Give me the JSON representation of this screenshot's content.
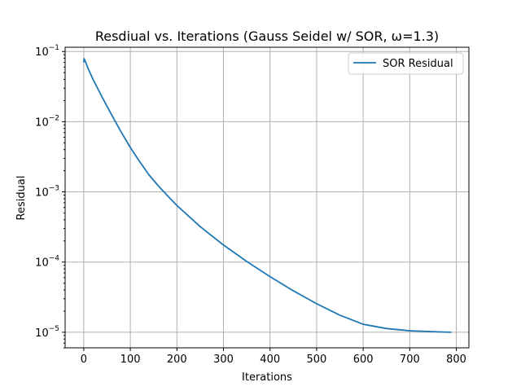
{
  "chart_data": {
    "type": "line",
    "title": "Resdiual vs. Iterations (Gauss Seidel w/ SOR, ω=1.3)",
    "xlabel": "Iterations",
    "ylabel": "Residual",
    "yscale": "log",
    "xlim": [
      -40,
      827
    ],
    "ylim": [
      6e-06,
      0.115
    ],
    "grid": true,
    "legend_position": "top-right",
    "x_ticks": [
      0,
      100,
      200,
      300,
      400,
      500,
      600,
      700,
      800
    ],
    "y_ticks": [
      {
        "value": 1e-05,
        "base": "10",
        "exp": "−5"
      },
      {
        "value": 0.0001,
        "base": "10",
        "exp": "−4"
      },
      {
        "value": 0.001,
        "base": "10",
        "exp": "−3"
      },
      {
        "value": 0.01,
        "base": "10",
        "exp": "−2"
      },
      {
        "value": 0.1,
        "base": "10",
        "exp": "−1"
      }
    ],
    "series": [
      {
        "name": "SOR Residual",
        "color": "#1f77b4",
        "x": [
          0,
          1,
          2,
          5,
          10,
          20,
          40,
          60,
          80,
          100,
          120,
          140,
          160,
          180,
          200,
          250,
          300,
          350,
          400,
          450,
          500,
          550,
          600,
          650,
          700,
          750,
          788
        ],
        "y": [
          0.071,
          0.079,
          0.076,
          0.068,
          0.056,
          0.04,
          0.022,
          0.0125,
          0.0072,
          0.0043,
          0.0027,
          0.00175,
          0.00122,
          0.00088,
          0.00064,
          0.00032,
          0.000175,
          0.000102,
          6.2e-05,
          3.9e-05,
          2.55e-05,
          1.75e-05,
          1.3e-05,
          1.13e-05,
          1.05e-05,
          1.02e-05,
          1e-05
        ]
      }
    ]
  }
}
